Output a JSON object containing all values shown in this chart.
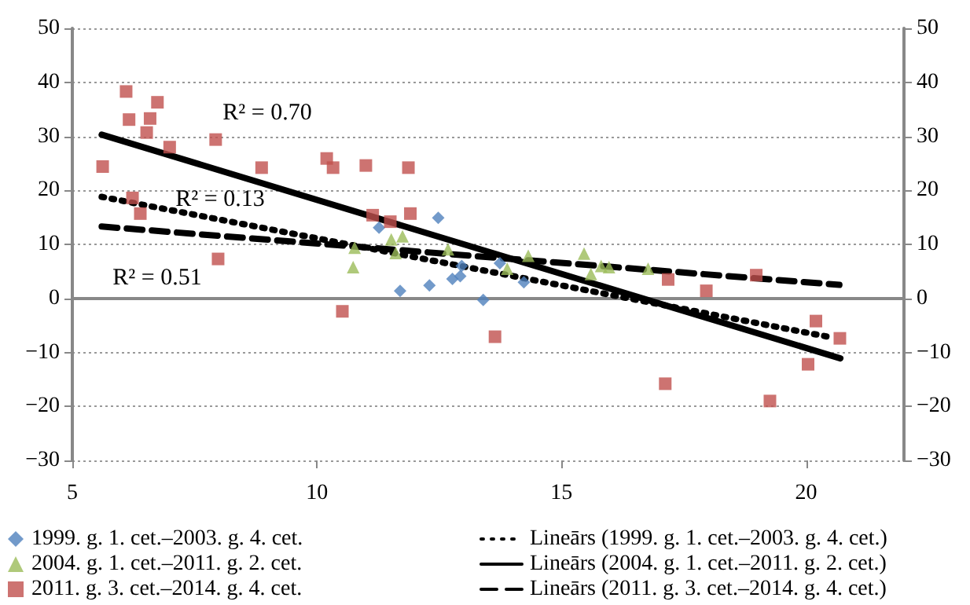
{
  "chart_data": {
    "type": "scatter",
    "xlim": [
      5,
      22
    ],
    "xticks": [
      5,
      10,
      15,
      20
    ],
    "ylim": [
      -30,
      50
    ],
    "yticks": [
      -30,
      -20,
      -10,
      0,
      10,
      20,
      30,
      40,
      50
    ],
    "y2lim": [
      -30,
      50
    ],
    "y2ticks": [
      -30,
      -20,
      -10,
      0,
      10,
      20,
      30,
      40,
      50
    ],
    "grid": "y",
    "legend": "bottom",
    "annotations": [
      "R² = 0.70",
      "R² = 0.13",
      "R² = 0.51"
    ],
    "series": [
      {
        "name": "1999. g. 1. cet.–2003. g. 4. cet.",
        "marker": "diamond",
        "color": "#4f81bd",
        "x": [
          11.27,
          12.48,
          11.7,
          12.3,
          12.77,
          12.93,
          12.96,
          13.4,
          13.74,
          14.23
        ],
        "values": [
          13.1,
          14.9,
          1.4,
          2.4,
          3.6,
          4.1,
          6.0,
          -0.3,
          6.5,
          3.0
        ]
      },
      {
        "name": "2004. g. 1. cet.–2011. g. 2. cet.",
        "marker": "triangle",
        "color": "#9bbb59",
        "x": [
          10.77,
          10.74,
          11.52,
          11.75,
          11.61,
          12.68,
          14.32,
          13.89,
          15.46,
          15.6,
          15.81,
          15.97,
          16.77
        ],
        "values": [
          9.4,
          5.8,
          10.9,
          11.5,
          8.4,
          9.1,
          7.9,
          5.5,
          8.3,
          4.5,
          6.0,
          5.8,
          5.5
        ]
      },
      {
        "name": "2011. g. 3. cet.–2014. g. 4. cet.",
        "marker": "square",
        "color": "#c0504d",
        "x": [
          5.62,
          6.1,
          6.16,
          6.52,
          6.59,
          6.74,
          6.99,
          6.23,
          6.39,
          7.93,
          7.98,
          8.87,
          10.2,
          10.33,
          11.0,
          11.87,
          11.91,
          11.14,
          11.5,
          10.52,
          13.64,
          17.18,
          17.96,
          18.98,
          17.12,
          19.26,
          20.2,
          20.04,
          20.69
        ],
        "values": [
          24.4,
          38.3,
          33.1,
          30.7,
          33.3,
          36.3,
          28.0,
          18.6,
          15.7,
          29.4,
          7.3,
          24.2,
          25.9,
          24.2,
          24.6,
          24.2,
          15.7,
          15.4,
          14.2,
          -2.4,
          -7.1,
          3.5,
          1.4,
          4.3,
          -15.8,
          -19.0,
          -4.2,
          -12.2,
          -7.4
        ]
      },
      {
        "name": "Lineārs (1999. g. 1. cet.–2003. g. 4. cet.)",
        "type": "line",
        "line_style": "dotted",
        "marker": "none",
        "color": "#000000",
        "x": [
          5.6,
          20.5
        ],
        "values": [
          18.8,
          -7.2
        ]
      },
      {
        "name": "Lineārs (2004. g. 1. cet.–2011. g. 2. cet.)",
        "type": "line",
        "line_style": "solid",
        "marker": "none",
        "color": "#000000",
        "x": [
          5.6,
          20.7
        ],
        "values": [
          30.3,
          -11.1
        ]
      },
      {
        "name": "Lineārs (2011. g. 3. cet.–2014. g. 4. cet.)",
        "type": "line",
        "line_style": "dashed",
        "marker": "none",
        "color": "#000000",
        "x": [
          5.6,
          20.68
        ],
        "values": [
          13.3,
          2.5
        ]
      }
    ]
  }
}
